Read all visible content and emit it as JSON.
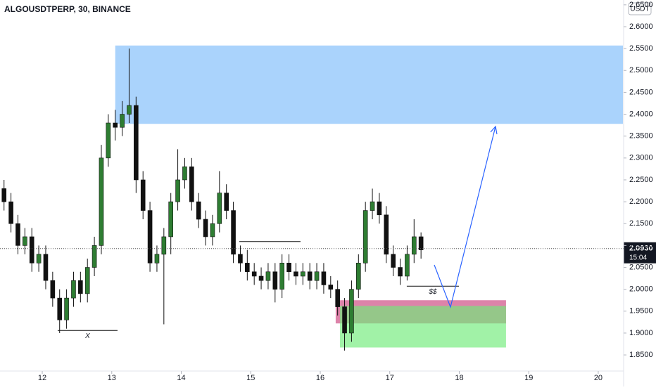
{
  "chart_data": {
    "type": "candlestick",
    "title": "ALGOUSDTPERP, 30, BINANCE",
    "currency": "USDT",
    "x": [
      11.45,
      11.55,
      11.65,
      11.75,
      11.85,
      11.95,
      12.05,
      12.15,
      12.25,
      12.35,
      12.45,
      12.55,
      12.65,
      12.75,
      12.85,
      12.95,
      13.05,
      13.15,
      13.25,
      13.35,
      13.45,
      13.55,
      13.65,
      13.75,
      13.85,
      13.95,
      14.05,
      14.15,
      14.25,
      14.35,
      14.45,
      14.55,
      14.65,
      14.75,
      14.85,
      14.95,
      15.05,
      15.15,
      15.25,
      15.35,
      15.45,
      15.55,
      15.65,
      15.75,
      15.85,
      15.95,
      16.05,
      16.15,
      16.25,
      16.35,
      16.45,
      16.55,
      16.65,
      16.75,
      16.85,
      16.95,
      17.05,
      17.15,
      17.25,
      17.35,
      17.45
    ],
    "open": [
      2.23,
      2.2,
      2.15,
      2.1,
      2.12,
      2.06,
      2.08,
      2.02,
      1.98,
      1.93,
      1.98,
      2.02,
      1.99,
      2.05,
      2.1,
      2.3,
      2.38,
      2.37,
      2.4,
      2.42,
      2.25,
      2.18,
      2.06,
      2.08,
      2.12,
      2.2,
      2.25,
      2.28,
      2.2,
      2.16,
      2.12,
      2.15,
      2.22,
      2.18,
      2.08,
      2.06,
      2.04,
      2.03,
      2.02,
      2.04,
      2.0,
      2.06,
      2.04,
      2.03,
      2.04,
      2.02,
      2.04,
      2.01,
      2.0,
      1.96,
      1.9,
      2.0,
      2.06,
      2.18,
      2.2,
      2.17,
      2.08,
      2.05,
      2.03,
      2.08,
      2.12
    ],
    "high": [
      2.25,
      2.22,
      2.17,
      2.14,
      2.14,
      2.1,
      2.1,
      2.04,
      2.0,
      2.0,
      2.04,
      2.04,
      2.07,
      2.12,
      2.33,
      2.4,
      2.41,
      2.43,
      2.55,
      2.44,
      2.27,
      2.2,
      2.1,
      2.14,
      2.22,
      2.32,
      2.3,
      2.3,
      2.22,
      2.18,
      2.17,
      2.27,
      2.24,
      2.2,
      2.1,
      2.09,
      2.06,
      2.05,
      2.06,
      2.06,
      2.08,
      2.08,
      2.06,
      2.06,
      2.06,
      2.06,
      2.06,
      2.03,
      2.02,
      1.98,
      2.02,
      2.08,
      2.2,
      2.23,
      2.22,
      2.19,
      2.1,
      2.07,
      2.1,
      2.16,
      2.13
    ],
    "low": [
      2.18,
      2.13,
      2.08,
      2.08,
      2.04,
      2.04,
      2.0,
      1.96,
      1.9,
      1.91,
      1.96,
      1.97,
      1.97,
      2.03,
      2.08,
      2.28,
      2.34,
      2.35,
      2.38,
      2.22,
      2.16,
      2.04,
      2.04,
      1.92,
      2.08,
      2.18,
      2.23,
      2.18,
      2.14,
      2.1,
      2.1,
      2.13,
      2.16,
      2.06,
      2.04,
      2.02,
      2.01,
      2.0,
      2.0,
      1.97,
      1.98,
      2.02,
      2.01,
      2.01,
      2.0,
      2.0,
      1.99,
      1.98,
      1.94,
      1.86,
      1.88,
      1.98,
      2.04,
      2.16,
      2.15,
      2.06,
      2.03,
      2.01,
      2.02,
      2.06,
      2.07
    ],
    "close": [
      2.2,
      2.15,
      2.1,
      2.12,
      2.06,
      2.08,
      2.02,
      1.98,
      1.93,
      1.98,
      2.02,
      1.99,
      2.05,
      2.1,
      2.3,
      2.38,
      2.37,
      2.4,
      2.42,
      2.25,
      2.18,
      2.06,
      2.08,
      2.12,
      2.2,
      2.25,
      2.28,
      2.2,
      2.16,
      2.12,
      2.15,
      2.22,
      2.18,
      2.08,
      2.06,
      2.04,
      2.03,
      2.02,
      2.04,
      2.0,
      2.06,
      2.04,
      2.03,
      2.04,
      2.02,
      2.04,
      2.01,
      2.0,
      1.96,
      1.9,
      2.0,
      2.06,
      2.18,
      2.2,
      2.17,
      2.08,
      2.05,
      2.03,
      2.08,
      2.12,
      2.09
    ],
    "up_color": "#2e7d32",
    "down_color": "#111111",
    "xlim": [
      11.392,
      20.355
    ],
    "xticks": [
      12,
      13,
      14,
      15,
      16,
      17,
      18,
      19,
      20
    ],
    "ylim": [
      1.81,
      2.661
    ],
    "yticks": [
      {
        "value": 1.85,
        "label": "1.8500"
      },
      {
        "value": 1.9,
        "label": "1.9000"
      },
      {
        "value": 1.95,
        "label": "1.9500"
      },
      {
        "value": 2.0,
        "label": "2.0000"
      },
      {
        "value": 2.05,
        "label": "2.0500"
      },
      {
        "value": 2.1,
        "label": "2.1000"
      },
      {
        "value": 2.15,
        "label": "2.1500"
      },
      {
        "value": 2.2,
        "label": "2.2000"
      },
      {
        "value": 2.25,
        "label": "2.2500"
      },
      {
        "value": 2.3,
        "label": "2.3000"
      },
      {
        "value": 2.35,
        "label": "2.3500"
      },
      {
        "value": 2.4,
        "label": "2.4000"
      },
      {
        "value": 2.45,
        "label": "2.4500"
      },
      {
        "value": 2.5,
        "label": "2.5000"
      },
      {
        "value": 2.55,
        "label": "2.5500"
      },
      {
        "value": 2.6,
        "label": "2.6000"
      },
      {
        "value": 2.65,
        "label": "2.6500"
      }
    ],
    "last_price": {
      "value": 2.093,
      "label": "2.0930",
      "countdown": "15:04"
    },
    "zones": [
      {
        "x": [
          13.05,
          20.355
        ],
        "y": [
          2.378,
          2.557
        ],
        "color": "rgba(100,175,250,0.55)"
      },
      {
        "x": [
          16.222,
          18.673
        ],
        "y": [
          1.922,
          1.975
        ],
        "color": "rgba(210,90,140,0.75)"
      },
      {
        "x": [
          16.283,
          18.673
        ],
        "y": [
          1.867,
          1.962
        ],
        "color": "rgba(110,235,120,0.65)"
      }
    ],
    "levels": [
      {
        "x": [
          12.222,
          13.083
        ],
        "value": 1.906,
        "label": "X"
      },
      {
        "x": [
          14.835,
          15.716
        ],
        "value": 2.109
      },
      {
        "x": [
          17.245,
          17.995
        ],
        "value": 2.007,
        "label": "$$"
      }
    ]
  }
}
